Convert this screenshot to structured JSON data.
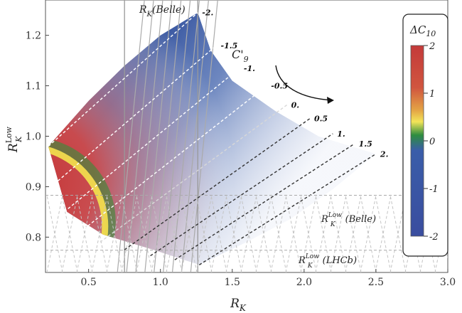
{
  "chart_data": {
    "type": "contour",
    "xlabel": "R",
    "xlabel_sub": "K",
    "ylabel": "R",
    "ylabel_sup": "Low",
    "ylabel_sub": "K",
    "xlim": [
      0.2,
      3.0
    ],
    "ylim": [
      0.73,
      1.27
    ],
    "x_ticks": [
      "0.5",
      "1.0",
      "1.5",
      "2.0",
      "2.5",
      "3.0"
    ],
    "x_tick_values": [
      0.5,
      1.0,
      1.5,
      2.0,
      2.5,
      3.0
    ],
    "y_ticks": [
      "0.8",
      "0.9",
      "1.0",
      "1.1",
      "1.2"
    ],
    "y_tick_values": [
      0.8,
      0.9,
      1.0,
      1.1,
      1.2
    ],
    "colorbar": {
      "title": "ΔC",
      "title_sub": "10",
      "range": [
        -2,
        2
      ],
      "ticks": [
        "2",
        "1",
        "0",
        "-1",
        "-2"
      ],
      "tick_values": [
        2,
        1,
        0,
        -1,
        -2
      ],
      "colors": [
        "#cc3333",
        "#e8a040",
        "#f1e150",
        "#2f8a3a",
        "#3b5ca8",
        "#3b4fa0"
      ]
    },
    "c9_label": "C'",
    "c9_sub": "9",
    "c9_lines": [
      {
        "label": "-2.",
        "start": [
          0.22,
          0.98
        ],
        "end": [
          1.26,
          1.245
        ]
      },
      {
        "label": "-1.5",
        "start": [
          0.26,
          0.905
        ],
        "end": [
          1.39,
          1.18
        ]
      },
      {
        "label": "-1.",
        "start": [
          0.33,
          0.85
        ],
        "end": [
          1.55,
          1.135
        ]
      },
      {
        "label": "-0.5",
        "start": [
          0.44,
          0.81
        ],
        "end": [
          1.74,
          1.1
        ]
      },
      {
        "label": "0.",
        "start": [
          0.58,
          0.79
        ],
        "end": [
          1.88,
          1.062
        ]
      },
      {
        "label": "0.5",
        "start": [
          0.75,
          0.775
        ],
        "end": [
          2.04,
          1.035
        ]
      },
      {
        "label": "1.",
        "start": [
          0.93,
          0.763
        ],
        "end": [
          2.2,
          1.005
        ]
      },
      {
        "label": "1.5",
        "start": [
          1.1,
          0.755
        ],
        "end": [
          2.35,
          0.985
        ]
      },
      {
        "label": "2.",
        "start": [
          1.27,
          0.745
        ],
        "end": [
          2.5,
          0.965
        ]
      }
    ],
    "boundary_top": [
      [
        0.22,
        0.98
      ],
      [
        0.5,
        1.07
      ],
      [
        0.75,
        1.14
      ],
      [
        1.0,
        1.2
      ],
      [
        1.26,
        1.245
      ]
    ],
    "boundary_right": [
      [
        1.26,
        1.245
      ],
      [
        1.35,
        1.17
      ],
      [
        1.5,
        1.11
      ],
      [
        1.8,
        1.05
      ],
      [
        2.1,
        1.0
      ],
      [
        2.5,
        0.965
      ]
    ],
    "boundary_bottom": [
      [
        2.5,
        0.965
      ],
      [
        2.2,
        0.895
      ],
      [
        1.9,
        0.835
      ],
      [
        1.6,
        0.79
      ],
      [
        1.27,
        0.745
      ],
      [
        0.95,
        0.775
      ],
      [
        0.6,
        0.805
      ],
      [
        0.35,
        0.85
      ],
      [
        0.22,
        0.98
      ]
    ],
    "belle_label": "R",
    "belle_label_sub": "K",
    "belle_label_paren": "(Belle)",
    "belle_x_band": [
      0.75,
      1.26
    ],
    "rlow_belle": {
      "y": 0.883,
      "label": "R",
      "sup": "Low",
      "sub": "K",
      "paren": "(Belle)"
    },
    "rlow_lhcb": {
      "y": 0.774,
      "label": "R",
      "sup": "Low",
      "sub": "K",
      "paren": "(LHCb)"
    },
    "grid": false
  }
}
